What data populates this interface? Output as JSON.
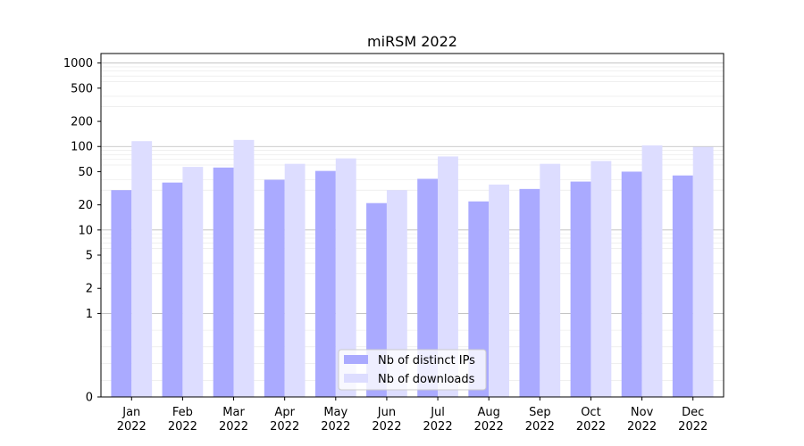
{
  "chart_data": {
    "type": "bar",
    "title": "miRSM 2022",
    "xlabel": "",
    "ylabel": "",
    "y_scale": "symlog",
    "ylim": [
      0,
      1300
    ],
    "y_ticks": [
      0,
      1,
      2,
      5,
      10,
      20,
      50,
      100,
      200,
      500,
      1000
    ],
    "y_tick_labels": [
      "0",
      "1",
      "2",
      "5",
      "10",
      "20",
      "50",
      "100",
      "200",
      "500",
      "1000"
    ],
    "categories": [
      "Jan\n2022",
      "Feb\n2022",
      "Mar\n2022",
      "Apr\n2022",
      "May\n2022",
      "Jun\n2022",
      "Jul\n2022",
      "Aug\n2022",
      "Sep\n2022",
      "Oct\n2022",
      "Nov\n2022",
      "Dec\n2022"
    ],
    "series": [
      {
        "name": "Nb of distinct IPs",
        "color": "#aaaaff",
        "values": [
          30,
          37,
          56,
          40,
          51,
          21,
          41,
          22,
          31,
          38,
          50,
          45
        ]
      },
      {
        "name": "Nb of downloads",
        "color": "#ddddff",
        "values": [
          116,
          57,
          120,
          62,
          72,
          30,
          76,
          35,
          62,
          67,
          103,
          99
        ]
      }
    ],
    "grid": "horizontal",
    "legend_position": "bottom-center"
  }
}
